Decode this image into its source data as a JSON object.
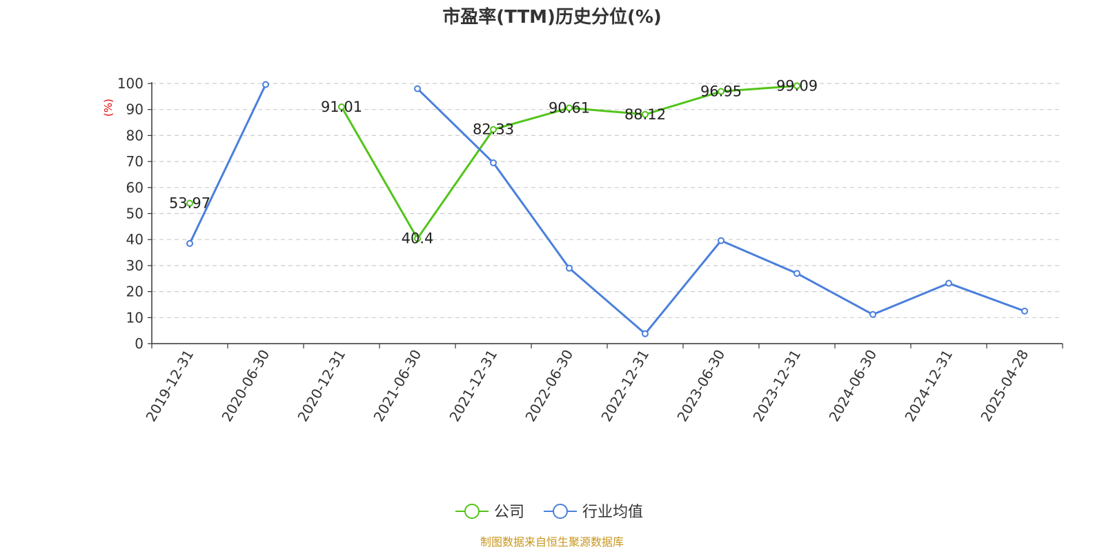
{
  "chart_data": {
    "type": "line",
    "title": "市盈率(TTM)历史分位(%)",
    "ylabel": "(%)",
    "xlabel": "",
    "ylim": [
      0,
      100
    ],
    "yticks": [
      0,
      10,
      20,
      30,
      40,
      50,
      60,
      70,
      80,
      90,
      100
    ],
    "grid": true,
    "categories": [
      "2019-12-31",
      "2020-06-30",
      "2020-12-31",
      "2021-06-30",
      "2021-12-31",
      "2022-06-30",
      "2022-12-31",
      "2023-06-30",
      "2023-12-31",
      "2024-06-30",
      "2024-12-31",
      "2025-04-28"
    ],
    "series": [
      {
        "name": "公司",
        "color": "#52c41a",
        "show_labels": true,
        "values": [
          53.97,
          null,
          91.01,
          40.4,
          82.33,
          90.61,
          88.12,
          96.95,
          99.09,
          null,
          null,
          null
        ]
      },
      {
        "name": "行业均值",
        "color": "#4a7fdc",
        "show_labels": false,
        "values": [
          38.5,
          99.6,
          null,
          98,
          69.5,
          29,
          3.8,
          39.6,
          27,
          11.2,
          23.2,
          12.5
        ]
      }
    ],
    "legend_position": "bottom-center",
    "ylabel_color": "#e60000",
    "source": "制图数据来自恒生聚源数据库",
    "source_color": "#c8961e"
  }
}
